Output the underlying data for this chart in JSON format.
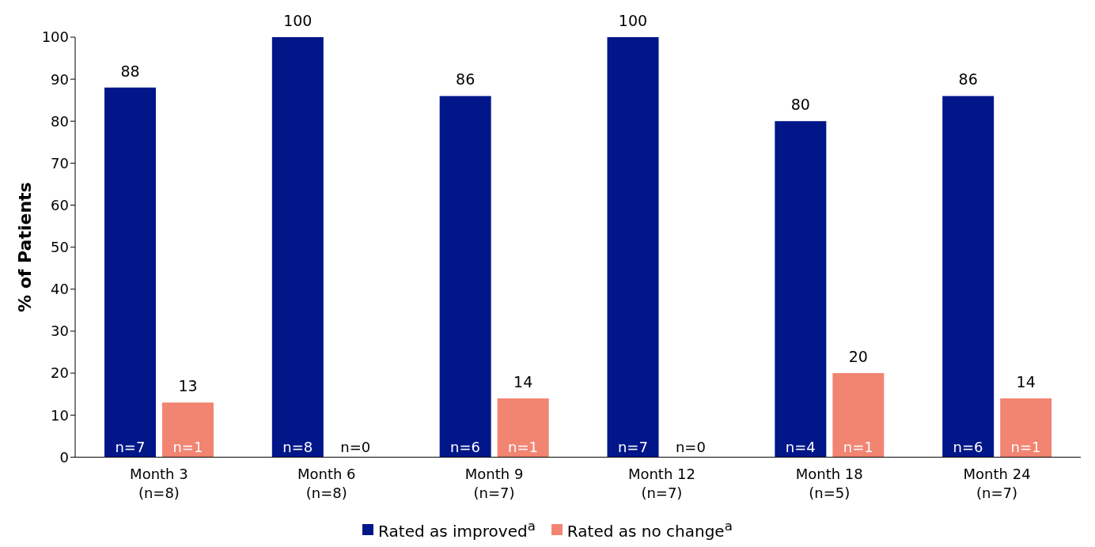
{
  "chart_data": {
    "type": "bar",
    "ylabel": "% of Patients",
    "categories": [
      "Month 3\n(n=8)",
      "Month 6\n(n=8)",
      "Month 9\n(n=7)",
      "Month 12\n(n=7)",
      "Month 18\n(n=5)",
      "Month 24\n(n=7)"
    ],
    "series": [
      {
        "name": "Rated as improved$^{a}$",
        "color": "#001689",
        "values": [
          88,
          100,
          86,
          100,
          80,
          86
        ],
        "value_labels": [
          "88",
          "100",
          "86",
          "100",
          "80",
          "86"
        ]
      },
      {
        "name": "Rated as no change$^{a}$",
        "color": "#f28472",
        "values": [
          13,
          0,
          14,
          0,
          20,
          14
        ],
        "value_labels": [
          "13",
          null,
          "14",
          null,
          "20",
          "14"
        ]
      }
    ],
    "ylim": [
      0,
      100
    ],
    "yticks": [
      0,
      10,
      20,
      30,
      40,
      50,
      60,
      70,
      80,
      90,
      100
    ],
    "grid": false,
    "legend": "bottom",
    "annotations": [
      {
        "text": "n=7",
        "x": "Month 3\n(n=8)",
        "y": 0
      },
      {
        "text": "n=1",
        "x": "Month 3\n(n=8)",
        "y": 0
      },
      {
        "text": "n=8",
        "x": "Month 6\n(n=8)",
        "y": 0
      },
      {
        "text": "n=0",
        "x": "Month 6\n(n=8)",
        "y": 0
      },
      {
        "text": "n=6",
        "x": "Month 9\n(n=7)",
        "y": 0
      },
      {
        "text": "n=1",
        "x": "Month 9\n(n=7)",
        "y": 0
      },
      {
        "text": "n=7",
        "x": "Month 12\n(n=7)",
        "y": 0
      },
      {
        "text": "n=0",
        "x": "Month 12\n(n=7)",
        "y": 0
      },
      {
        "text": "n=4",
        "x": "Month 18\n(n=5)",
        "y": 0
      },
      {
        "text": "n=1",
        "x": "Month 18\n(n=5)",
        "y": 0
      },
      {
        "text": "n=6",
        "x": "Month 24\n(n=7)",
        "y": 0
      },
      {
        "text": "n=1",
        "x": "Month 24\n(n=7)",
        "y": 0
      }
    ]
  }
}
